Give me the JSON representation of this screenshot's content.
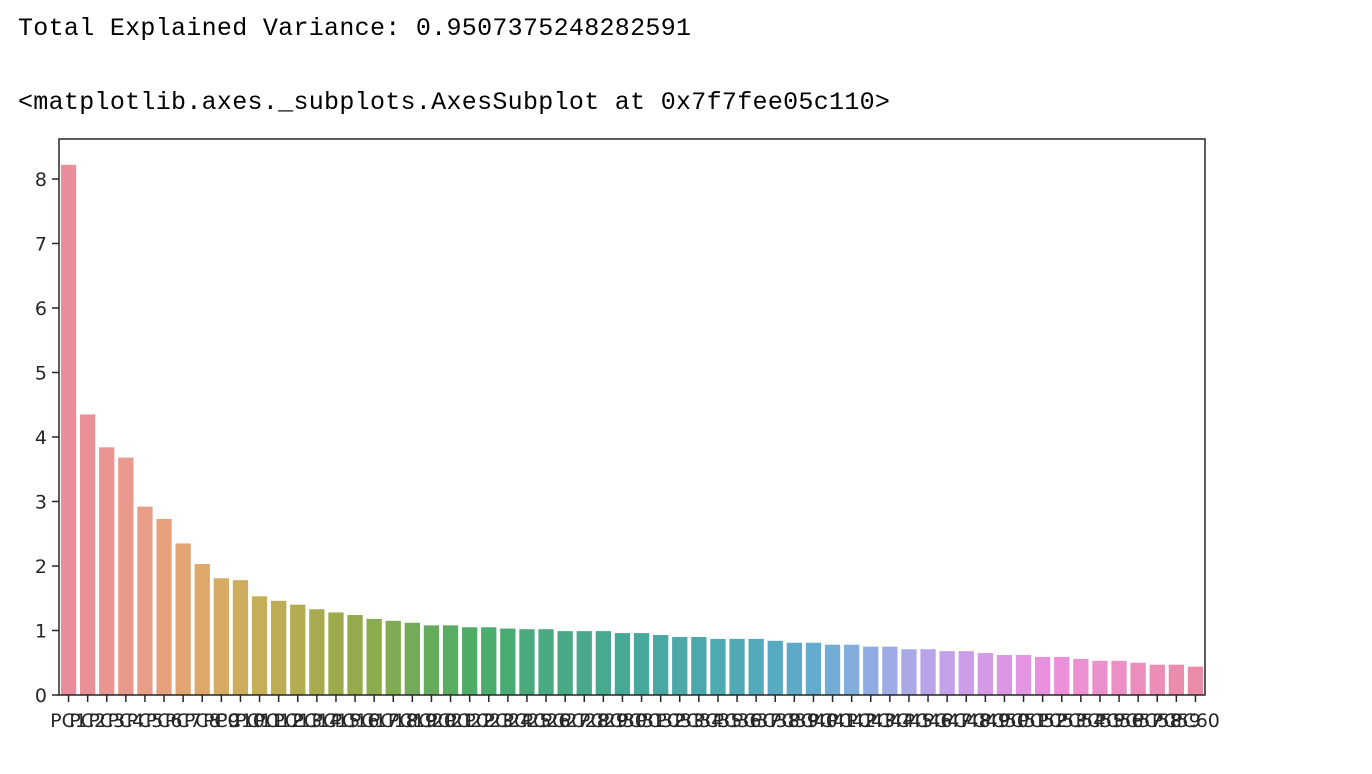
{
  "output": {
    "line1": "Total Explained Variance: 0.9507375248282591",
    "line2": "<matplotlib.axes._subplots.AxesSubplot at 0x7f7fee05c110>"
  },
  "chart_data": {
    "type": "bar",
    "title": "",
    "xlabel": "",
    "ylabel": "",
    "ylim": [
      0,
      8.62
    ],
    "yticks": [
      0,
      1,
      2,
      3,
      4,
      5,
      6,
      7,
      8
    ],
    "grid": false,
    "legend": "none",
    "categories": [
      "PC1",
      "PC2",
      "PC3",
      "PC4",
      "PC5",
      "PC6",
      "PC7",
      "PC8",
      "PC9",
      "PC10",
      "PC11",
      "PC12",
      "PC13",
      "PC14",
      "PC15",
      "PC16",
      "PC17",
      "PC18",
      "PC19",
      "PC20",
      "PC21",
      "PC22",
      "PC23",
      "PC24",
      "PC25",
      "PC26",
      "PC27",
      "PC28",
      "PC29",
      "PC30",
      "PC31",
      "PC32",
      "PC33",
      "PC34",
      "PC35",
      "PC36",
      "PC37",
      "PC38",
      "PC39",
      "PC40",
      "PC41",
      "PC42",
      "PC43",
      "PC44",
      "PC45",
      "PC46",
      "PC47",
      "PC48",
      "PC49",
      "PC50",
      "PC51",
      "PC52",
      "PC53",
      "PC54",
      "PC55",
      "PC56",
      "PC57",
      "PC58",
      "PC59",
      "PC60"
    ],
    "values": [
      8.22,
      4.35,
      3.84,
      3.68,
      2.92,
      2.73,
      2.35,
      2.03,
      1.81,
      1.78,
      1.53,
      1.46,
      1.4,
      1.33,
      1.28,
      1.24,
      1.18,
      1.15,
      1.12,
      1.08,
      1.08,
      1.05,
      1.05,
      1.03,
      1.02,
      1.02,
      0.99,
      0.99,
      0.99,
      0.96,
      0.96,
      0.93,
      0.9,
      0.9,
      0.87,
      0.87,
      0.87,
      0.84,
      0.81,
      0.81,
      0.78,
      0.78,
      0.75,
      0.75,
      0.71,
      0.71,
      0.68,
      0.68,
      0.65,
      0.62,
      0.62,
      0.59,
      0.59,
      0.56,
      0.53,
      0.53,
      0.5,
      0.47,
      0.47,
      0.44
    ],
    "colors": [
      "#ea8d9b",
      "#ea9097",
      "#e99592",
      "#e8998c",
      "#e79d86",
      "#e6a27c",
      "#e2a472",
      "#dca96a",
      "#d6ac62",
      "#cdad5d",
      "#c5ae58",
      "#bcad55",
      "#b3ad52",
      "#a8ab4f",
      "#9eab4d",
      "#95aa4d",
      "#8aab4e",
      "#7fab52",
      "#73ab58",
      "#67ab5d",
      "#5aac61",
      "#4fab66",
      "#4cac6c",
      "#4bab74",
      "#4aaa7b",
      "#49a980",
      "#49a985",
      "#49a88b",
      "#48a890",
      "#48a896",
      "#49a89c",
      "#4aa8a2",
      "#4ba8a7",
      "#4ca8ac",
      "#4ea9b1",
      "#51a9b6",
      "#54a9bc",
      "#58a9c2",
      "#5daac8",
      "#65aacf",
      "#72add5",
      "#80addc",
      "#90abe1",
      "#9eabe4",
      "#aba8e6",
      "#b8a5e8",
      "#c2a1e8",
      "#cb9ce7",
      "#d49ae6",
      "#dc97e4",
      "#e394e2",
      "#e891df",
      "#eb90d9",
      "#ec90d2",
      "#ec90cc",
      "#ec8fc4",
      "#eb8ebd",
      "#eb8db6",
      "#ea8cae",
      "#ea8ca7"
    ],
    "xtick_labels": [
      "PC1",
      "PC2",
      "PC3",
      "PC4",
      "PC5",
      "PC6",
      "PC7",
      "PC8",
      "PC9",
      "PC10",
      "PC11",
      "PC12",
      "PC13",
      "PC14",
      "PC15",
      "PC16",
      "PC17",
      "PC18",
      "PC19",
      "PC20",
      "PC21",
      "PC22",
      "PC23",
      "PC24",
      "PC25",
      "PC26",
      "PC27",
      "PC28",
      "PC29",
      "PC30",
      "PC31",
      "PC32",
      "PC33",
      "PC34",
      "PC35",
      "PC36",
      "PC37",
      "PC38",
      "PC39",
      "PC40",
      "PC41",
      "PC42",
      "PC43",
      "PC44",
      "PC45",
      "PC46",
      "PC47",
      "PC48",
      "PC49",
      "PC50",
      "PC51",
      "PC52",
      "PC53",
      "PC54",
      "PC55",
      "PC56",
      "PC57",
      "PC58",
      "PC59",
      "PC60"
    ]
  }
}
